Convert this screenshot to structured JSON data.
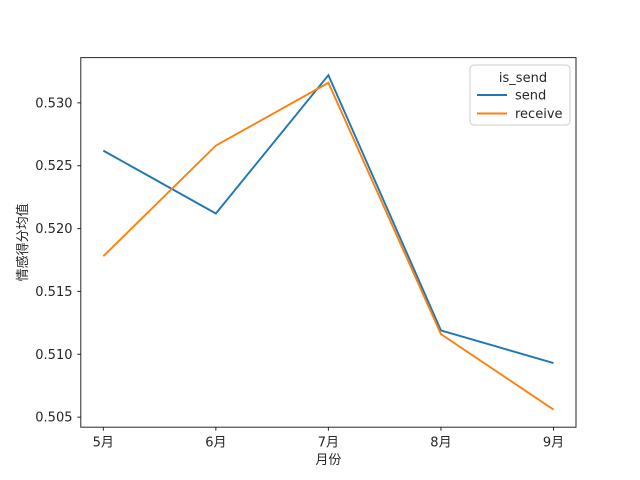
{
  "chart_data": {
    "type": "line",
    "x": [
      5,
      6,
      7,
      8,
      9
    ],
    "x_tick_labels": [
      "5月",
      "6月",
      "7月",
      "8月",
      "9月"
    ],
    "series": [
      {
        "name": "send",
        "color": "#1f77b4",
        "values": [
          0.5262,
          0.5212,
          0.5322,
          0.5119,
          0.5093
        ]
      },
      {
        "name": "receive",
        "color": "#ff7f0e",
        "values": [
          0.5178,
          0.5266,
          0.5316,
          0.5116,
          0.5056
        ]
      }
    ],
    "title": "",
    "xlabel": "月份",
    "ylabel": "情感得分均值",
    "xlim": [
      4.8,
      9.2
    ],
    "ylim": [
      0.5042,
      0.5336
    ],
    "yticks": [
      0.505,
      0.51,
      0.515,
      0.52,
      0.525,
      0.53
    ],
    "ytick_labels": [
      "0.505",
      "0.510",
      "0.515",
      "0.520",
      "0.525",
      "0.530"
    ],
    "grid": false,
    "legend": {
      "title": "is_send",
      "position": "upper right",
      "entries": [
        "send",
        "receive"
      ]
    }
  },
  "style": {
    "spine_color": "#262626",
    "tick_color": "#262626",
    "legend_border_color": "#cccccc",
    "background": "#ffffff",
    "line_width": 1.9
  }
}
